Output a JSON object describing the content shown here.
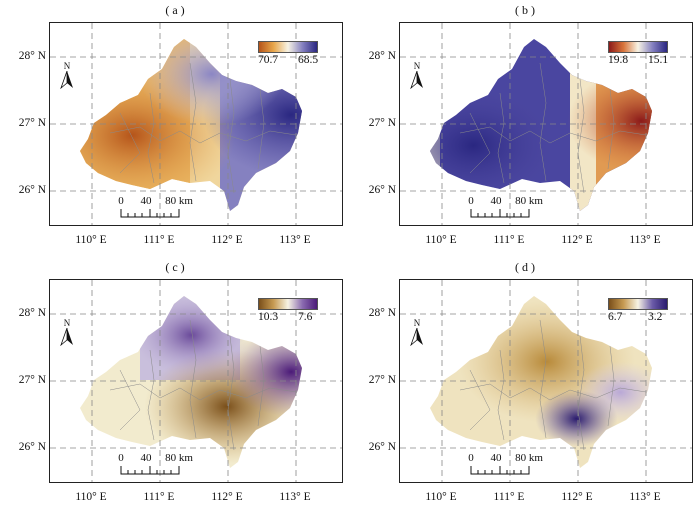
{
  "panels": [
    {
      "label": "( a )",
      "legend_min": "70.7",
      "legend_max": "68.5",
      "colors": {
        "low": "#c77a1a",
        "mid": "#f7f3e4",
        "high": "#2a2781"
      }
    },
    {
      "label": "( b )",
      "legend_min": "19.8",
      "legend_max": "15.1",
      "colors": {
        "low": "#8b1a1a",
        "mid": "#f7f3e4",
        "high": "#2a2781"
      }
    },
    {
      "label": "( c )",
      "legend_min": "10.3",
      "legend_max": "7.6",
      "colors": {
        "low": "#7a4f1a",
        "mid": "#f7f3e4",
        "high": "#4b1a78"
      }
    },
    {
      "label": "( d )",
      "legend_min": "6.7",
      "legend_max": "3.2",
      "colors": {
        "low": "#7a4f1a",
        "mid": "#f7f3e4",
        "high": "#2a1b6e"
      }
    }
  ],
  "lon_ticks": [
    "110° E",
    "111° E",
    "112° E",
    "113° E"
  ],
  "lat_ticks": [
    "28° N",
    "27° N",
    "26° N"
  ],
  "scale": {
    "labels": [
      "0",
      "40",
      "80 km"
    ]
  },
  "north_label": "N"
}
